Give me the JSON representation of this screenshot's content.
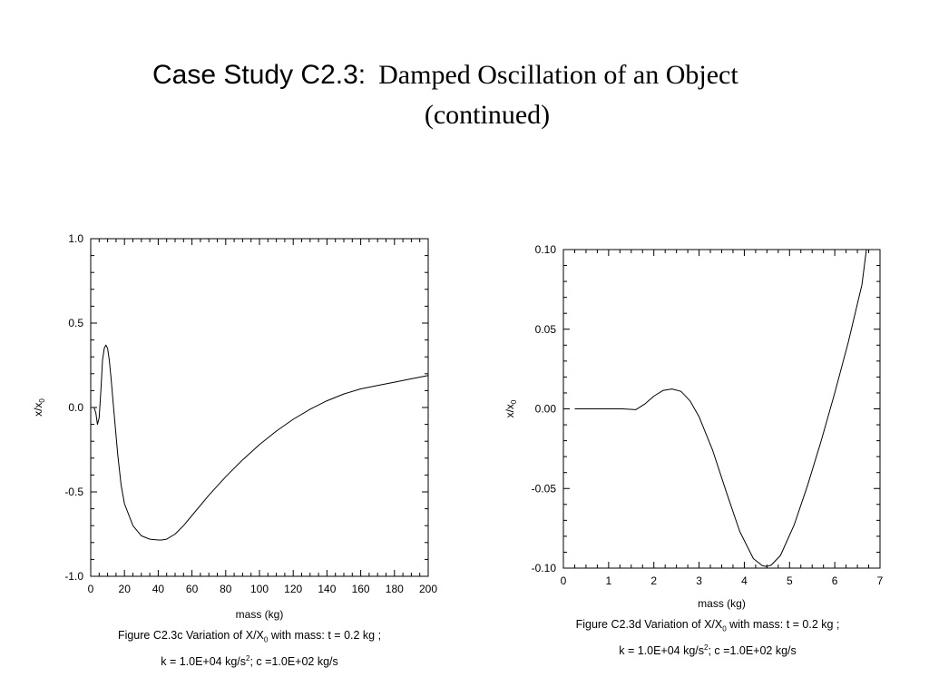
{
  "title": {
    "prefix": "Case Study C2.3:",
    "main": "Damped Oscillation of an Object",
    "continued": "(continued)"
  },
  "chart_data": [
    {
      "type": "line",
      "xlabel": "mass (kg)",
      "ylabel": "x/x",
      "ylabel_sub": "0",
      "xlim": [
        0,
        200
      ],
      "ylim": [
        -1.0,
        1.0
      ],
      "x_ticks": [
        0,
        20,
        40,
        60,
        80,
        100,
        120,
        140,
        160,
        180,
        200
      ],
      "y_ticks": [
        "-1.0",
        "-0.5",
        "0.0",
        "0.5",
        "1.0"
      ],
      "grid": false,
      "series": [
        {
          "x": [
            1,
            2,
            3,
            4,
            5,
            6,
            7,
            8,
            9,
            10,
            11,
            12,
            14,
            16,
            18,
            20,
            25,
            30,
            35,
            40,
            42,
            45,
            50,
            55,
            60,
            70,
            80,
            90,
            100,
            110,
            120,
            130,
            140,
            150,
            160,
            170,
            180,
            190,
            200
          ],
          "y": [
            0.0,
            0.0,
            -0.03,
            -0.1,
            -0.06,
            0.1,
            0.28,
            0.35,
            0.37,
            0.35,
            0.28,
            0.18,
            -0.05,
            -0.28,
            -0.46,
            -0.57,
            -0.7,
            -0.76,
            -0.78,
            -0.785,
            -0.785,
            -0.78,
            -0.75,
            -0.7,
            -0.64,
            -0.52,
            -0.41,
            -0.31,
            -0.22,
            -0.14,
            -0.07,
            -0.01,
            0.04,
            0.08,
            0.11,
            0.13,
            0.15,
            0.17,
            0.19
          ]
        }
      ],
      "caption": {
        "figure": "Figure  C2.3c Variation of X/X",
        "figure_sub": "0",
        "figure_rest": " with mass: t = 0.2 kg ;",
        "line2_a": "k = 1.0E+04 kg/s",
        "line2_sup": "2",
        "line2_b": "; c =1.0E+02 kg/s"
      }
    },
    {
      "type": "line",
      "xlabel": "mass (kg)",
      "ylabel": "x/x",
      "ylabel_sub": "0",
      "xlim": [
        0,
        7
      ],
      "ylim": [
        -0.1,
        0.1
      ],
      "x_ticks": [
        0,
        1,
        2,
        3,
        4,
        5,
        6,
        7
      ],
      "y_ticks": [
        "-0.10",
        "-0.05",
        "0.00",
        "0.05",
        "0.10"
      ],
      "grid": false,
      "series": [
        {
          "x": [
            0.25,
            0.5,
            1.0,
            1.3,
            1.6,
            1.8,
            2.0,
            2.2,
            2.4,
            2.6,
            2.8,
            3.0,
            3.3,
            3.6,
            3.9,
            4.2,
            4.4,
            4.5,
            4.6,
            4.8,
            5.1,
            5.4,
            5.7,
            6.0,
            6.3,
            6.6,
            6.7
          ],
          "y": [
            0.0,
            0.0,
            0.0,
            0.0,
            -0.0005,
            0.003,
            0.008,
            0.0115,
            0.0125,
            0.011,
            0.005,
            -0.005,
            -0.026,
            -0.052,
            -0.077,
            -0.094,
            -0.0985,
            -0.099,
            -0.098,
            -0.092,
            -0.073,
            -0.048,
            -0.02,
            0.01,
            0.042,
            0.078,
            0.1
          ]
        }
      ],
      "caption": {
        "figure": "Figure  C2.3d Variation of X/X",
        "figure_sub": "0",
        "figure_rest": " with mass: t = 0.2 kg ;",
        "line2_a": "k = 1.0E+04 kg/s",
        "line2_sup": "2",
        "line2_b": "; c =1.0E+02 kg/s"
      }
    }
  ]
}
